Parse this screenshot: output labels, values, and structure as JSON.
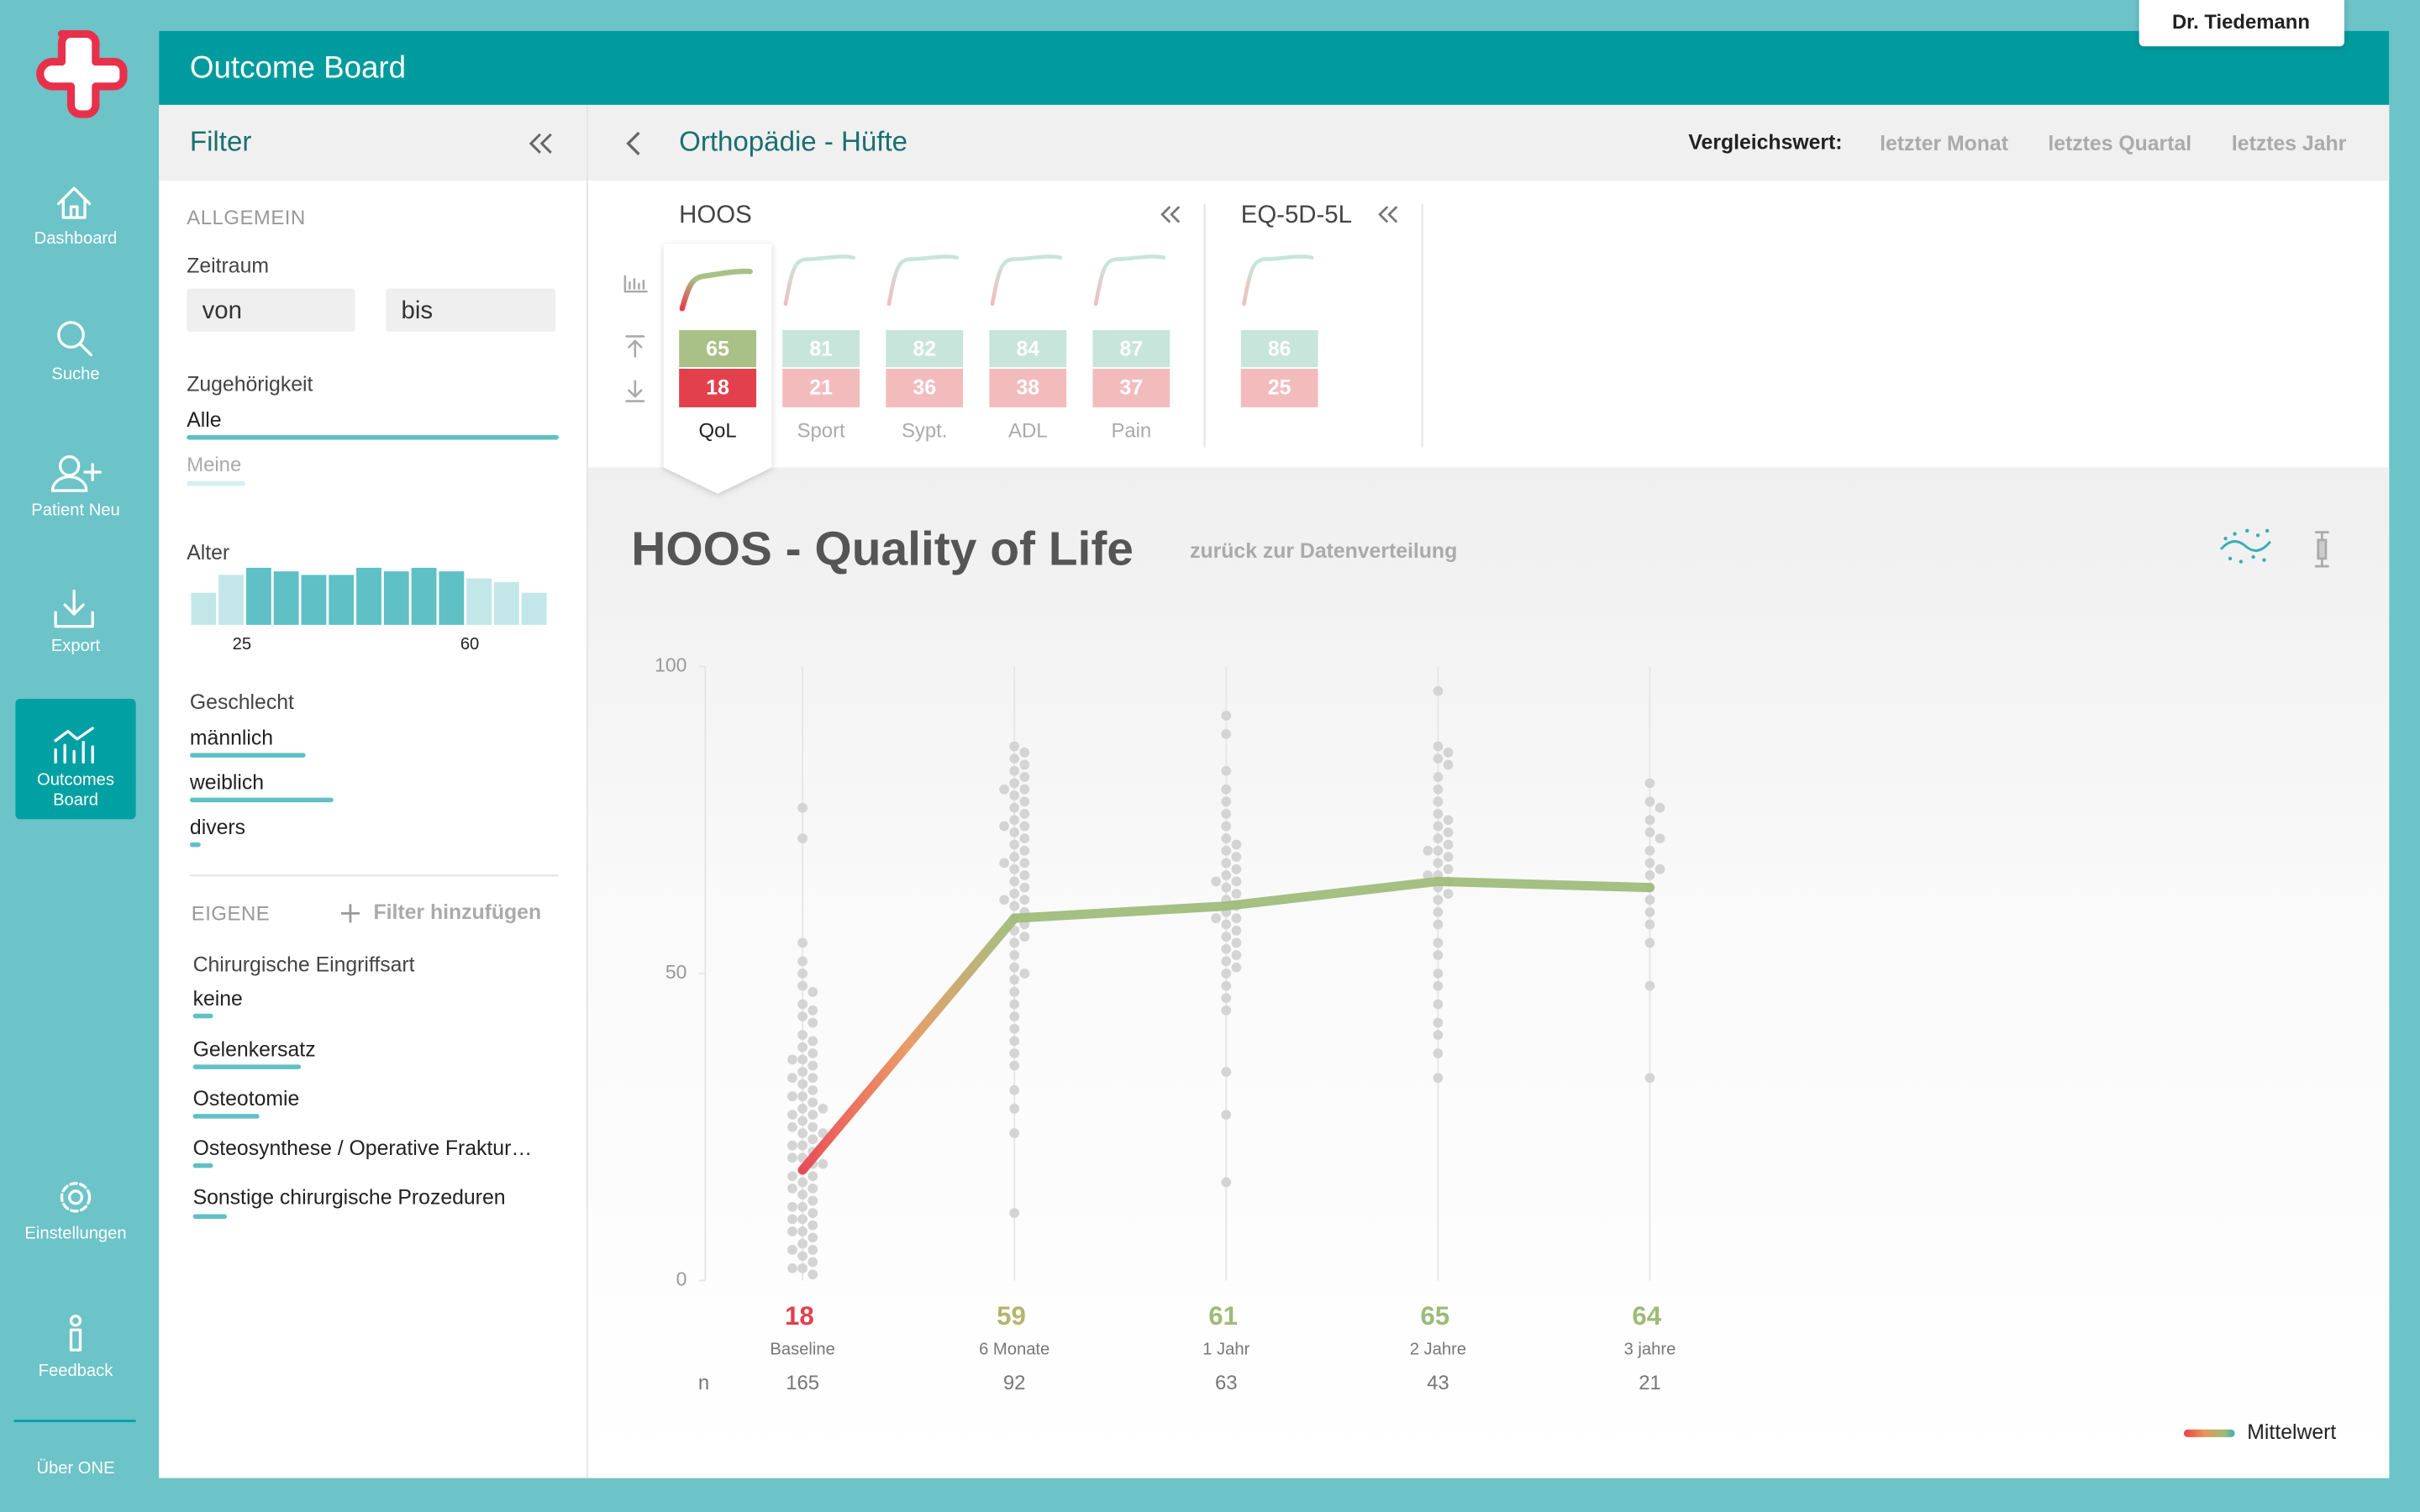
{
  "header": {
    "title": "Outcome Board",
    "user": "Dr. Tiedemann"
  },
  "nav": {
    "items": [
      [
        "Dashboard"
      ],
      [
        "Suche"
      ],
      [
        "Patient Neu"
      ],
      [
        "Export"
      ],
      [
        "Outcomes",
        "Board"
      ],
      [
        "Einstellungen"
      ],
      [
        "Feedback"
      ]
    ],
    "footer": "Über ONE"
  },
  "filter": {
    "title": "Filter",
    "general": "ALLGEMEIN",
    "period": {
      "label": "Zeitraum",
      "from": "von",
      "to": "bis"
    },
    "membership": {
      "label": "Zugehörigkeit",
      "options": [
        "Alle",
        "Meine"
      ]
    },
    "age": {
      "label": "Alter",
      "type": "histogram",
      "xlim": [
        17,
        72
      ],
      "xticks": [
        25,
        60
      ],
      "counts": [
        9,
        14,
        16,
        15,
        14,
        14,
        16,
        15,
        16,
        15,
        13,
        12,
        9
      ],
      "colors": [
        "#c3e7e9",
        "#c3e7e9",
        "#5fc0c5",
        "#5fc0c5",
        "#5fc0c5",
        "#5fc0c5",
        "#5fc0c5",
        "#5fc0c5",
        "#5fc0c5",
        "#5fc0c5",
        "#c3e7e9",
        "#c3e7e9",
        "#c3e7e9"
      ]
    },
    "gender": {
      "label": "Geschlecht",
      "options": [
        "männlich",
        "weiblich",
        "divers"
      ]
    },
    "own": "EIGENE",
    "add": "Filter hinzufügen",
    "surgery": {
      "label": "Chirurgische Eingriffsart",
      "options": [
        "keine",
        "Gelenkersatz",
        "Osteotomie",
        "Osteosynthese / Operative Fraktur…",
        "Sonstige chirurgische Prozeduren"
      ]
    }
  },
  "breadcrumb": "Orthopädie - Hüfte",
  "compare": {
    "label": "Vergleichswert:",
    "options": [
      "letzter Monat",
      "letztes Quartal",
      "letztes Jahr"
    ]
  },
  "scores": [
    {
      "name": "HOOS",
      "items": [
        {
          "label": "QoL",
          "current": 65,
          "baseline": 18,
          "colors": [
            "#a9c187",
            "#e2404c"
          ],
          "active": true
        },
        {
          "label": "Sport",
          "current": 81,
          "baseline": 21,
          "colors": [
            "#c7e5da",
            "#f3bcbc"
          ]
        },
        {
          "label": "Sypt.",
          "current": 82,
          "baseline": 36,
          "colors": [
            "#c7e5da",
            "#f3bcbc"
          ]
        },
        {
          "label": "ADL",
          "current": 84,
          "baseline": 38,
          "colors": [
            "#c7e5da",
            "#f3bcbc"
          ]
        },
        {
          "label": "Pain",
          "current": 87,
          "baseline": 37,
          "colors": [
            "#c7e5da",
            "#f3bcbc"
          ]
        }
      ]
    },
    {
      "name": "EQ-5D-5L",
      "items": [
        {
          "current": 86,
          "baseline": 25,
          "colors": [
            "#c7e5da",
            "#f3bcbc"
          ]
        }
      ]
    }
  ],
  "chart_data": {
    "type": "line",
    "title": "HOOS - Quality of Life",
    "link": "zurück zur Datenverteilung",
    "categories": [
      "Baseline",
      "6 Monate",
      "1 Jahr",
      "2 Jahre",
      "3 jahre"
    ],
    "values": [
      18,
      59,
      61,
      65,
      64
    ],
    "value_colors": [
      "#e2404c",
      "#b5b46e",
      "#9dbb78",
      "#9dbb78",
      "#9dbb78"
    ],
    "line_colors": [
      "#e8404a",
      "#e8945a",
      "#9dbb78"
    ],
    "legend": "Mittelwert",
    "n_label": "n",
    "n": [
      165,
      92,
      63,
      43,
      21
    ],
    "ylim": [
      0,
      100
    ],
    "yticks": [
      0,
      50,
      100
    ],
    "distribution": [
      [
        77,
        72,
        55,
        52,
        50,
        48,
        47,
        45,
        44,
        43,
        42,
        40,
        39,
        38,
        37,
        36,
        35,
        34,
        33,
        32,
        31,
        30,
        30,
        29,
        28,
        27,
        26,
        25,
        25,
        24,
        23,
        22,
        21,
        20,
        20,
        19,
        18,
        17,
        16,
        15,
        14,
        13,
        12,
        11,
        10,
        9,
        8,
        7,
        6,
        5,
        4,
        3,
        2,
        1,
        27,
        22,
        17,
        12,
        8,
        33,
        28,
        15,
        10,
        5,
        2,
        36,
        24,
        19
      ],
      [
        87,
        86,
        85,
        84,
        83,
        82,
        81,
        80,
        79,
        78,
        77,
        76,
        75,
        74,
        73,
        72,
        71,
        70,
        69,
        68,
        67,
        66,
        65,
        64,
        63,
        62,
        61,
        60,
        59,
        58,
        57,
        55,
        53,
        51,
        49,
        47,
        45,
        43,
        41,
        39,
        37,
        35,
        31,
        28,
        24,
        11,
        80,
        74,
        68,
        62,
        56,
        50
      ],
      [
        92,
        89,
        83,
        80,
        78,
        76,
        74,
        72,
        70,
        69,
        68,
        67,
        66,
        65,
        64,
        63,
        62,
        61,
        60,
        59,
        58,
        57,
        56,
        55,
        54,
        53,
        52,
        51,
        50,
        48,
        46,
        44,
        34,
        27,
        16,
        71,
        65,
        59
      ],
      [
        96,
        87,
        86,
        85,
        84,
        82,
        80,
        78,
        76,
        75,
        74,
        73,
        72,
        71,
        70,
        69,
        68,
        67,
        66,
        65,
        64,
        63,
        62,
        60,
        58,
        55,
        53,
        50,
        48,
        45,
        42,
        40,
        37,
        33,
        70,
        66
      ],
      [
        81,
        78,
        77,
        75,
        73,
        72,
        70,
        68,
        67,
        66,
        64,
        62,
        60,
        58,
        55,
        48,
        33
      ]
    ]
  }
}
